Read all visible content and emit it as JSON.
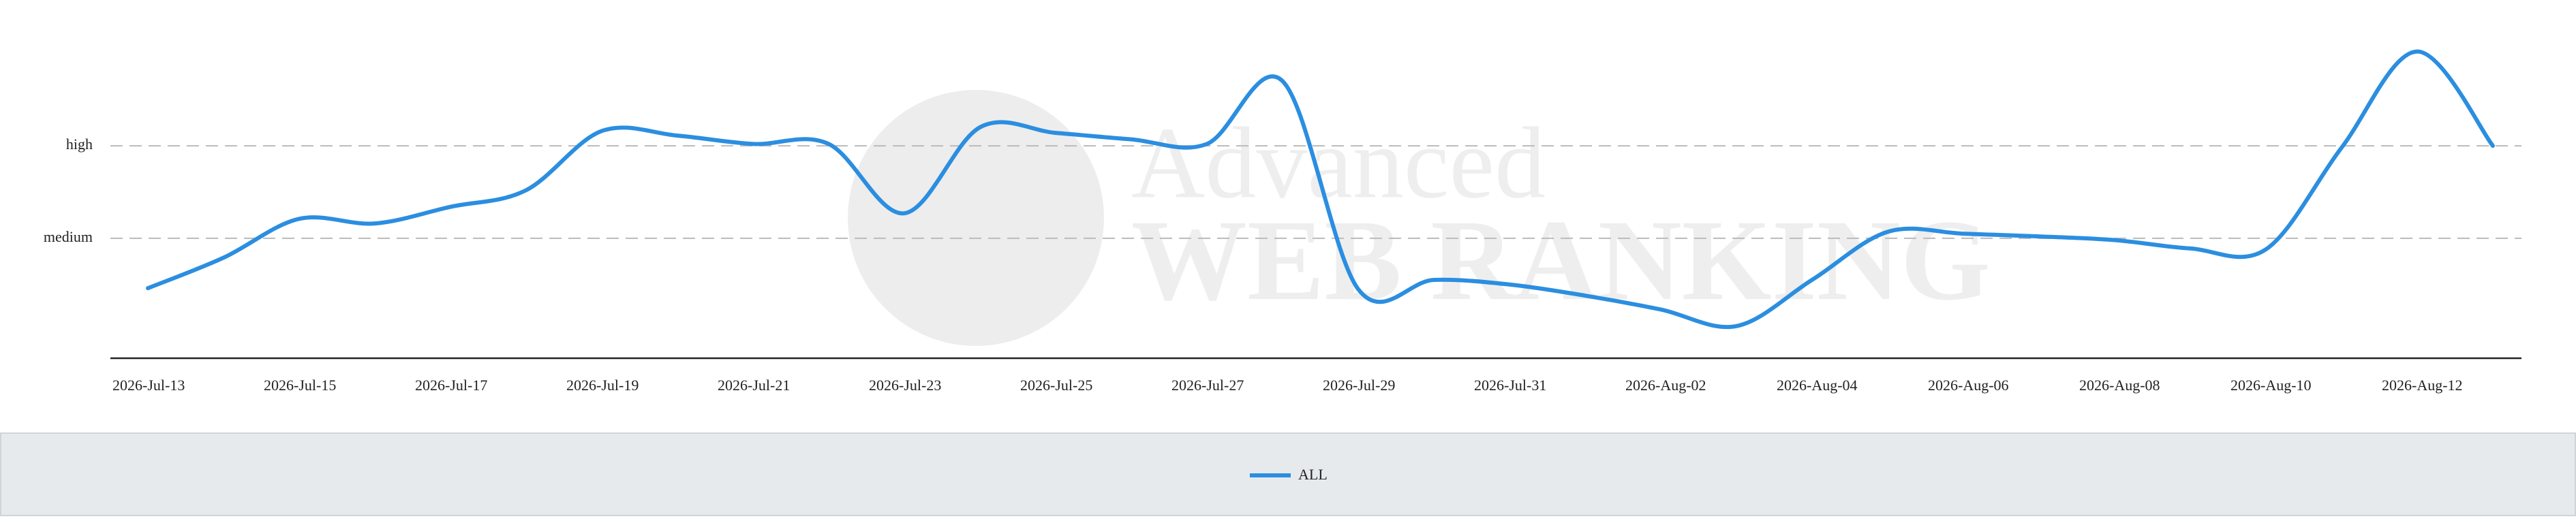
{
  "chart_data": {
    "type": "line",
    "watermark": {
      "line1": "Advanced",
      "line2": "WEB RANKING"
    },
    "categories": [
      "2026-Jul-13",
      null,
      "2026-Jul-15",
      null,
      "2026-Jul-17",
      null,
      "2026-Jul-19",
      null,
      "2026-Jul-21",
      null,
      "2026-Jul-23",
      null,
      "2026-Jul-25",
      null,
      "2026-Jul-27",
      null,
      "2026-Jul-29",
      null,
      "2026-Jul-31",
      null,
      "2026-Aug-02",
      null,
      "2026-Aug-04",
      null,
      "2026-Aug-06",
      null,
      "2026-Aug-08",
      null,
      "2026-Aug-10",
      null,
      "2026-Aug-12",
      null
    ],
    "series": [
      {
        "name": "ALL",
        "color": "#2b8ee0",
        "values": [
          0.46,
          0.79,
          1.21,
          1.16,
          1.34,
          1.52,
          2.16,
          2.11,
          2.02,
          2.02,
          1.27,
          2.2,
          2.14,
          2.07,
          2.02,
          2.7,
          0.45,
          0.55,
          0.5,
          0.38,
          0.23,
          0.05,
          0.55,
          1.07,
          1.05,
          1.02,
          0.98,
          0.89,
          0.88,
          1.98,
          3.02,
          2.0
        ]
      }
    ],
    "ylim": [
      -0.29,
      3.4
    ],
    "yticks": [
      {
        "value": 1,
        "label": "medium"
      },
      {
        "value": 2,
        "label": "high"
      }
    ],
    "grid": true,
    "legend": "bottom"
  }
}
